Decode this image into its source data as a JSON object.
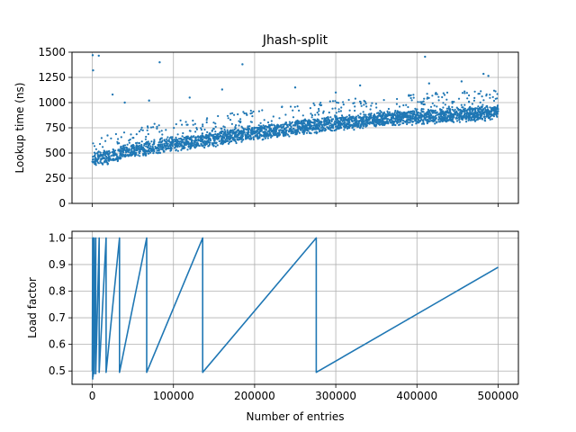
{
  "chart_data": [
    {
      "type": "scatter",
      "title": "Jhash-split",
      "xlabel": "",
      "ylabel": "Lookup time (ns)",
      "xlim": [
        -25000,
        525000
      ],
      "ylim": [
        0,
        1500
      ],
      "xticks": [
        0,
        100000,
        200000,
        300000,
        400000,
        500000
      ],
      "xtick_labels_visible": false,
      "yticks": [
        0,
        250,
        500,
        750,
        1000,
        1250,
        1500
      ],
      "ytick_labels": [
        "0",
        "250",
        "500",
        "750",
        "1000",
        "1250",
        "1500"
      ],
      "grid": true,
      "color": "#1f77b4",
      "trend": [
        {
          "x": 0,
          "y": 450
        },
        {
          "x": 20000,
          "y": 460
        },
        {
          "x": 50000,
          "y": 530
        },
        {
          "x": 100000,
          "y": 590
        },
        {
          "x": 150000,
          "y": 640
        },
        {
          "x": 200000,
          "y": 700
        },
        {
          "x": 250000,
          "y": 750
        },
        {
          "x": 300000,
          "y": 790
        },
        {
          "x": 350000,
          "y": 830
        },
        {
          "x": 400000,
          "y": 860
        },
        {
          "x": 450000,
          "y": 880
        },
        {
          "x": 500000,
          "y": 900
        }
      ],
      "outliers": [
        {
          "x": 500,
          "y": 1470
        },
        {
          "x": 8000,
          "y": 1465
        },
        {
          "x": 1000,
          "y": 1320
        },
        {
          "x": 83000,
          "y": 1400
        },
        {
          "x": 185000,
          "y": 1380
        },
        {
          "x": 410000,
          "y": 1455
        },
        {
          "x": 482000,
          "y": 1285
        },
        {
          "x": 488000,
          "y": 1265
        },
        {
          "x": 25000,
          "y": 1080
        },
        {
          "x": 120000,
          "y": 1050
        },
        {
          "x": 160000,
          "y": 1130
        },
        {
          "x": 250000,
          "y": 1150
        },
        {
          "x": 330000,
          "y": 1170
        },
        {
          "x": 415000,
          "y": 1190
        },
        {
          "x": 455000,
          "y": 1210
        },
        {
          "x": 40000,
          "y": 1000
        },
        {
          "x": 70000,
          "y": 1020
        },
        {
          "x": 300000,
          "y": 1100
        }
      ]
    },
    {
      "type": "line",
      "title": "",
      "xlabel": "Number of entries",
      "ylabel": "Load factor",
      "xlim": [
        -25000,
        525000
      ],
      "ylim": [
        0.45,
        1.025
      ],
      "xticks": [
        0,
        100000,
        200000,
        300000,
        400000,
        500000
      ],
      "xtick_labels": [
        "0",
        "100000",
        "200000",
        "300000",
        "400000",
        "500000"
      ],
      "yticks": [
        0.5,
        0.6,
        0.7,
        0.8,
        0.9,
        1.0
      ],
      "ytick_labels": [
        "0.5",
        "0.6",
        "0.7",
        "0.8",
        "0.9",
        "1.0"
      ],
      "grid": true,
      "color": "#1f77b4",
      "x": [
        0,
        500,
        500,
        1100,
        1100,
        2200,
        2200,
        4300,
        4300,
        8500,
        8500,
        17000,
        17000,
        33600,
        33600,
        67000,
        67000,
        136000,
        136000,
        276000,
        276000,
        500000
      ],
      "y": [
        0.5,
        1.0,
        0.47,
        1.0,
        0.48,
        1.0,
        0.49,
        1.0,
        0.49,
        1.0,
        0.495,
        1.0,
        0.495,
        1.0,
        0.495,
        1.0,
        0.495,
        1.0,
        0.495,
        1.0,
        0.495,
        0.89
      ]
    }
  ]
}
